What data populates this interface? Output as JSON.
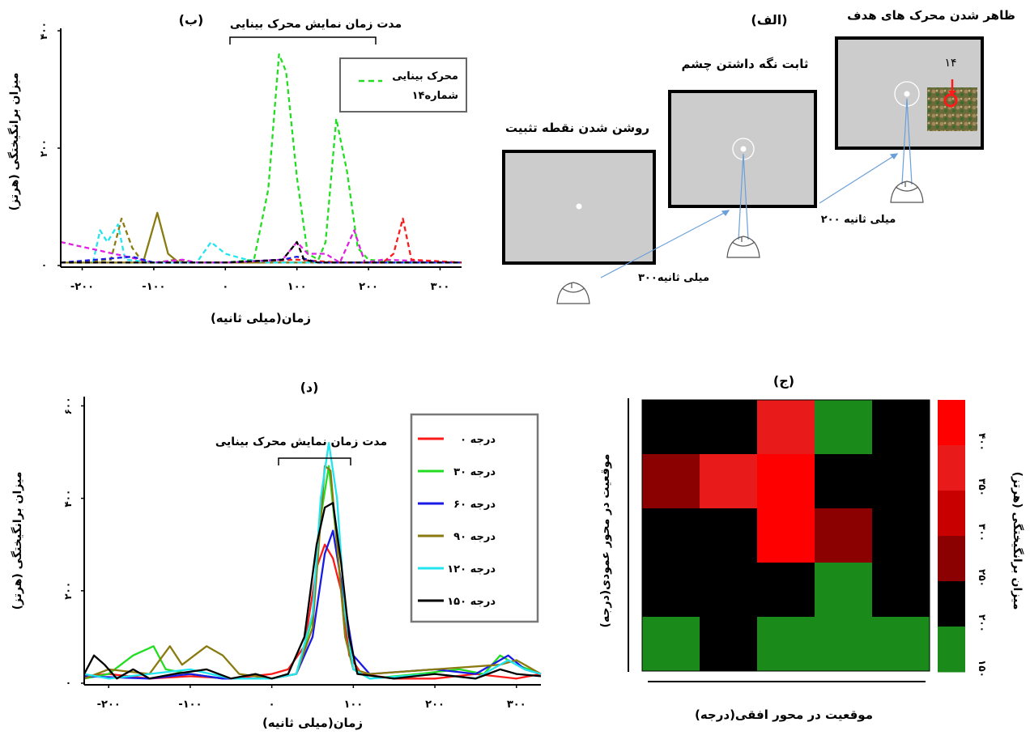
{
  "colors": {
    "red": "#ff1a1a",
    "green": "#22dd22",
    "blue": "#1a1ae6",
    "olive": "#8a7a10",
    "cyan": "#22e5f0",
    "black": "#000000",
    "magenta": "#e020e0",
    "screen_gray": "#cccccc",
    "fixation_line": "#6a9fd8"
  },
  "panel_a": {
    "title": "(الف)",
    "step1_label": "روشن شدن نقطه تثبیت",
    "step2_label": "ثابت نگه داشتن چشم",
    "step3_label": "ظاهر شدن محرک های هدف",
    "time1_label": "۳۰۰میلی ثانیه",
    "time2_label": "۲۰۰ میلی ثانیه",
    "target_number": "۱۴"
  },
  "panel_b": {
    "title": "(ب)",
    "stim_duration_label": "مدت زمان نمایش محرک بینایی",
    "legend_line1": "محرک بینایی",
    "legend_line2": "شماره۱۴",
    "ylabel": "میزان برانگیختگی (هرتز)",
    "xlabel": "زمان(میلی ثانیه)",
    "x_ticks": [
      "-۲۰۰",
      "-۱۰۰",
      "۰",
      "۱۰۰",
      "۲۰۰",
      "۳۰۰"
    ],
    "y_ticks": [
      "۰",
      "۲۰۰",
      "۴۰۰"
    ]
  },
  "panel_c": {
    "title": "(ج)",
    "ylabel": "موقعیت در محور عمودی(درجه)",
    "xlabel": "موقعیت در محور افقی(درجه)",
    "colorbar_label": "میزان برانگیختگی (هرتز)",
    "colorbar_ticks": [
      "۱۵۰",
      "۲۰۰",
      "۲۵۰",
      "۳۰۰",
      "۳۵۰",
      "۴۰۰"
    ]
  },
  "panel_d": {
    "title": "(د)",
    "stim_duration_label": "مدت زمان نمایش محرک بینایی",
    "ylabel": "میزان برانگیختگی (هرتز)",
    "xlabel": "زمان(میلی ثانیه)",
    "x_ticks": [
      "-۲۰۰",
      "-۱۰۰",
      "۰",
      "۱۰۰",
      "۲۰۰",
      "۳۰۰"
    ],
    "y_ticks": [
      "۰",
      "۲۰۰",
      "۴۰۰",
      "۶۰۰"
    ],
    "legend": [
      "۰ درجه",
      "۳۰ درجه",
      "۶۰ درجه",
      "۹۰ درجه",
      "۱۲۰ درجه",
      "۱۵۰ درجه"
    ]
  },
  "chart_data": [
    {
      "type": "line",
      "panel": "b",
      "xlim": [
        -230,
        330
      ],
      "ylim": [
        0,
        400
      ],
      "series": [
        {
          "name": "محرک بینایی شماره۱۴",
          "color": "#22dd22",
          "dash": true,
          "x": [
            -230,
            -60,
            0,
            40,
            60,
            75,
            85,
            100,
            115,
            130,
            140,
            155,
            170,
            185,
            200,
            240,
            300,
            330
          ],
          "y": [
            5,
            5,
            5,
            10,
            130,
            360,
            330,
            150,
            20,
            10,
            40,
            250,
            160,
            30,
            10,
            5,
            5,
            5
          ]
        },
        {
          "name": "",
          "color": "#8a7a10",
          "dash": true,
          "x": [
            -230,
            -160,
            -145,
            -130,
            -115,
            -95,
            -70,
            -40,
            0,
            120,
            330
          ],
          "y": [
            5,
            10,
            80,
            30,
            5,
            5,
            10,
            5,
            5,
            5,
            5
          ]
        },
        {
          "name": "",
          "color": "#8a7a10",
          "dash": false,
          "x": [
            -230,
            -115,
            -95,
            -80,
            -65,
            -40,
            0,
            100,
            330
          ],
          "y": [
            5,
            5,
            90,
            20,
            5,
            5,
            5,
            5,
            5
          ]
        },
        {
          "name": "",
          "color": "#22e5f0",
          "dash": true,
          "x": [
            -230,
            -185,
            -175,
            -165,
            -150,
            -140,
            -100,
            -40,
            -20,
            0,
            30,
            60,
            100,
            150,
            330
          ],
          "y": [
            5,
            5,
            60,
            40,
            70,
            10,
            5,
            5,
            40,
            20,
            10,
            5,
            5,
            5,
            5
          ]
        },
        {
          "name": "",
          "color": "#e020e0",
          "dash": true,
          "x": [
            -230,
            -100,
            -60,
            -40,
            0,
            80,
            100,
            115,
            140,
            160,
            180,
            195,
            220,
            330
          ],
          "y": [
            40,
            5,
            10,
            5,
            5,
            10,
            40,
            20,
            20,
            5,
            60,
            5,
            10,
            5
          ]
        },
        {
          "name": "",
          "color": "#ff1a1a",
          "dash": true,
          "x": [
            -230,
            0,
            100,
            160,
            220,
            235,
            248,
            260,
            330
          ],
          "y": [
            5,
            5,
            10,
            5,
            5,
            20,
            80,
            10,
            5
          ]
        },
        {
          "name": "",
          "color": "#1a1ae6",
          "dash": true,
          "x": [
            -230,
            -130,
            -100,
            0,
            80,
            100,
            130,
            330
          ],
          "y": [
            5,
            15,
            5,
            5,
            10,
            15,
            5,
            5
          ]
        },
        {
          "name": "",
          "color": "#000000",
          "dash": true,
          "x": [
            -230,
            0,
            80,
            100,
            110,
            130,
            200,
            330
          ],
          "y": [
            5,
            5,
            10,
            40,
            10,
            5,
            5,
            5
          ]
        }
      ]
    },
    {
      "type": "heatmap",
      "panel": "c",
      "rows": 5,
      "cols": 5,
      "values": [
        [
          200,
          200,
          350,
          150,
          200
        ],
        [
          250,
          350,
          400,
          200,
          200
        ],
        [
          200,
          200,
          400,
          250,
          200
        ],
        [
          200,
          200,
          200,
          150,
          200
        ],
        [
          150,
          200,
          150,
          150,
          150
        ]
      ],
      "colorbar": [
        150,
        200,
        250,
        300,
        350,
        400
      ]
    },
    {
      "type": "line",
      "panel": "d",
      "xlim": [
        -230,
        330
      ],
      "ylim": [
        0,
        620
      ],
      "series": [
        {
          "name": "۰ درجه",
          "color": "#ff1a1a",
          "x": [
            -230,
            -200,
            -150,
            -100,
            -50,
            0,
            20,
            40,
            55,
            65,
            75,
            85,
            95,
            110,
            150,
            200,
            250,
            300,
            330
          ],
          "y": [
            15,
            20,
            10,
            15,
            10,
            20,
            30,
            80,
            250,
            300,
            270,
            200,
            60,
            20,
            10,
            10,
            20,
            10,
            20
          ]
        },
        {
          "name": "۳۰ درجه",
          "color": "#22dd22",
          "x": [
            -230,
            -200,
            -170,
            -145,
            -130,
            -100,
            -60,
            0,
            30,
            50,
            60,
            70,
            80,
            90,
            100,
            120,
            180,
            230,
            260,
            280,
            300,
            330
          ],
          "y": [
            10,
            20,
            60,
            80,
            30,
            20,
            10,
            10,
            20,
            140,
            360,
            470,
            300,
            100,
            30,
            10,
            20,
            30,
            20,
            60,
            40,
            20
          ]
        },
        {
          "name": "۶۰ درجه",
          "color": "#1a1ae6",
          "x": [
            -230,
            -150,
            -100,
            -60,
            0,
            30,
            50,
            65,
            75,
            85,
            100,
            120,
            200,
            250,
            290,
            310,
            330
          ],
          "y": [
            15,
            10,
            20,
            10,
            10,
            20,
            100,
            280,
            330,
            220,
            60,
            20,
            30,
            20,
            60,
            30,
            20
          ]
        },
        {
          "name": "۹۰ درجه",
          "color": "#8a7a10",
          "x": [
            -230,
            -200,
            -150,
            -125,
            -110,
            -95,
            -80,
            -60,
            -40,
            0,
            30,
            50,
            65,
            72,
            80,
            90,
            100,
            120,
            200,
            280,
            300,
            330
          ],
          "y": [
            10,
            30,
            20,
            80,
            40,
            60,
            80,
            60,
            20,
            10,
            20,
            120,
            470,
            460,
            300,
            100,
            30,
            20,
            30,
            40,
            50,
            20
          ]
        },
        {
          "name": "۱۲۰ درجه",
          "color": "#22e5f0",
          "x": [
            -230,
            -200,
            -150,
            -100,
            -50,
            0,
            30,
            50,
            60,
            70,
            80,
            90,
            100,
            120,
            200,
            250,
            290,
            310,
            330
          ],
          "y": [
            20,
            10,
            20,
            30,
            10,
            10,
            20,
            150,
            400,
            520,
            400,
            150,
            30,
            10,
            20,
            10,
            50,
            30,
            20
          ]
        },
        {
          "name": "۱۵۰ درجه",
          "color": "#000000",
          "x": [
            -230,
            -218,
            -205,
            -190,
            -170,
            -150,
            -120,
            -80,
            -50,
            -20,
            0,
            20,
            40,
            55,
            65,
            75,
            85,
            95,
            105,
            150,
            200,
            250,
            280,
            300,
            330
          ],
          "y": [
            20,
            60,
            40,
            10,
            30,
            10,
            20,
            30,
            10,
            20,
            10,
            20,
            100,
            300,
            380,
            390,
            260,
            100,
            20,
            10,
            20,
            10,
            30,
            20,
            15
          ]
        }
      ]
    }
  ]
}
